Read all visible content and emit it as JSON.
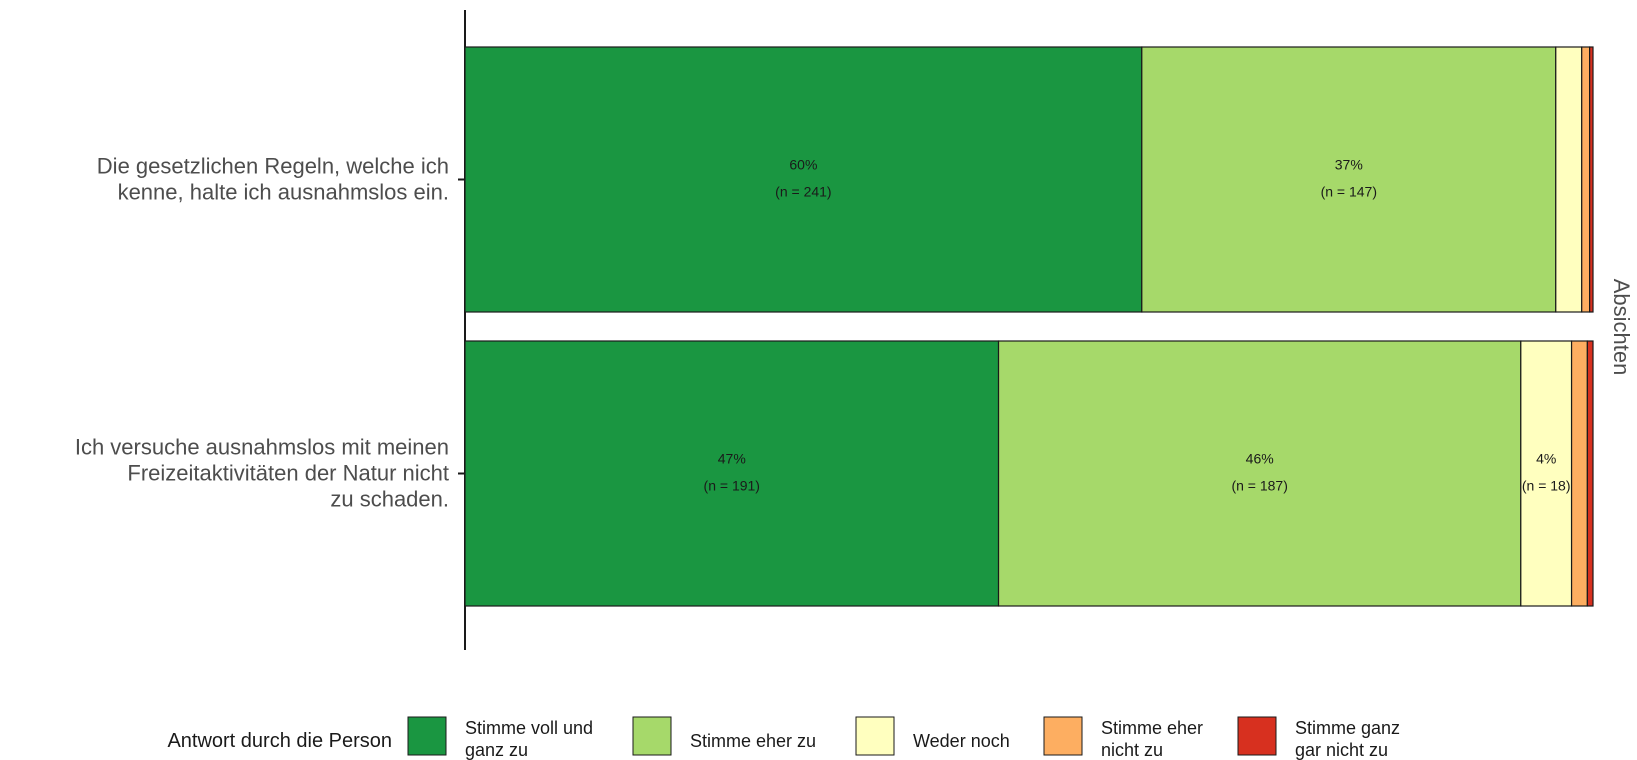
{
  "chart_data": {
    "type": "bar",
    "orientation": "horizontal",
    "stacked": true,
    "facet_label": "Absichten",
    "categories": [
      [
        "Die gesetzlichen Regeln, welche ich",
        "kenne, halte ich ausnahmslos ein."
      ],
      [
        "Ich versuche ausnahmslos mit meinen",
        "Freizeitaktivitäten der Natur nicht",
        "zu schaden."
      ]
    ],
    "series": [
      {
        "name": "Stimme voll und ganz zu",
        "legend_lines": [
          "Stimme voll und",
          "ganz zu"
        ],
        "color": "#1a9641",
        "values": [
          60.0,
          47.3
        ],
        "labels": [
          [
            "60%",
            "(n = 241)"
          ],
          [
            "47%",
            "(n = 191)"
          ]
        ]
      },
      {
        "name": "Stimme eher zu",
        "legend_lines": [
          "Stimme eher zu"
        ],
        "color": "#a6d96a",
        "values": [
          36.7,
          46.3
        ],
        "labels": [
          [
            "37%",
            "(n = 147)"
          ],
          [
            "46%",
            "(n = 187)"
          ]
        ]
      },
      {
        "name": "Weder noch",
        "legend_lines": [
          "Weder noch"
        ],
        "color": "#ffffbf",
        "values": [
          2.3,
          4.5
        ],
        "labels": [
          null,
          [
            "4%",
            "(n = 18)"
          ]
        ]
      },
      {
        "name": "Stimme eher nicht zu",
        "legend_lines": [
          "Stimme eher",
          "nicht zu"
        ],
        "color": "#fdae61",
        "values": [
          0.7,
          1.4
        ],
        "labels": [
          null,
          null
        ]
      },
      {
        "name": "Stimme ganz gar nicht zu",
        "legend_lines": [
          "Stimme ganz",
          "gar nicht zu"
        ],
        "color": "#d7301f",
        "values": [
          0.3,
          0.5
        ],
        "labels": [
          null,
          null
        ]
      }
    ],
    "xlim": [
      0,
      100
    ],
    "legend_title": "Antwort durch die Person",
    "legend_position": "bottom"
  }
}
